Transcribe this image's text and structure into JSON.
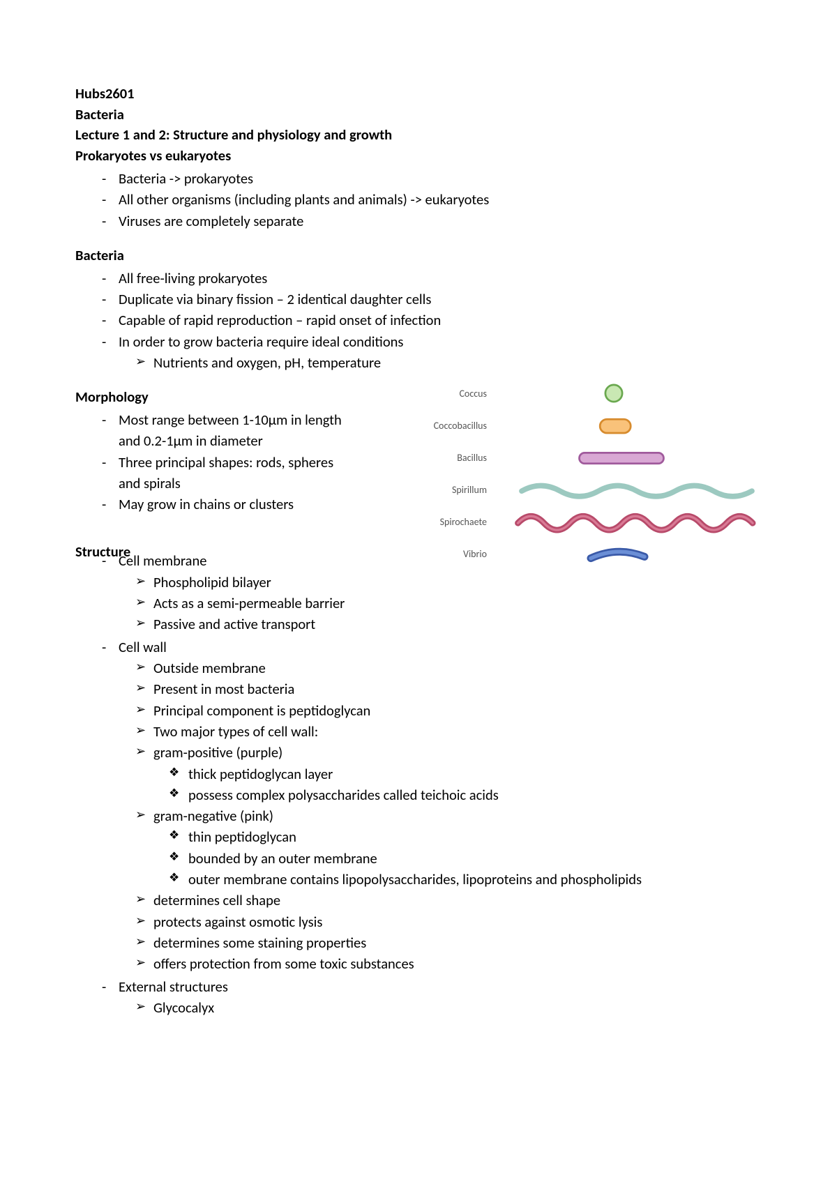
{
  "header": {
    "course": "Hubs2601",
    "topic": "Bacteria",
    "lecture": "Lecture 1 and 2: Structure and physiology and growth",
    "section1": "Prokaryotes vs eukaryotes"
  },
  "prok_vs_euk": [
    "Bacteria -> prokaryotes",
    "All other organisms (including plants and animals) -> eukaryotes",
    "Viruses are completely separate"
  ],
  "bacteria_heading": "Bacteria",
  "bacteria_points": [
    "All free-living prokaryotes",
    "Duplicate via binary fission – 2 identical daughter cells",
    "Capable of rapid reproduction – rapid onset of infection",
    "In order to grow bacteria require ideal conditions"
  ],
  "bacteria_sub": [
    "Nutrients and oxygen, pH, temperature"
  ],
  "morphology_heading": "Morphology",
  "morphology_points": [
    "Most range between 1-10μm in length and 0.2-1μm in diameter",
    "Three principal shapes: rods, spheres and spirals",
    "May grow in chains or clusters"
  ],
  "shapes": [
    {
      "label": "Coccus",
      "type": "coccus",
      "fill": "#c9e8b3",
      "stroke": "#6aa84f"
    },
    {
      "label": "Coccobacillus",
      "type": "coccobacillus",
      "fill": "#f9c27a",
      "stroke": "#d78b2d"
    },
    {
      "label": "Bacillus",
      "type": "bacillus",
      "fill": "#d9a8d4",
      "stroke": "#a05a9c"
    },
    {
      "label": "Spirillum",
      "type": "spirillum",
      "fill": "none",
      "stroke": "#9cc9c0"
    },
    {
      "label": "Spirochaete",
      "type": "spirochaete",
      "fill": "none",
      "stroke": "#b84a6a"
    },
    {
      "label": "Vibrio",
      "type": "vibrio",
      "fill": "#6b8fd6",
      "stroke": "#3a5aa8"
    }
  ],
  "structure_heading": "Structure",
  "cell_membrane": {
    "title": "Cell membrane",
    "points": [
      "Phospholipid bilayer",
      "Acts as a semi-permeable barrier",
      "Passive and active transport"
    ]
  },
  "cell_wall": {
    "title": "Cell wall",
    "points_top": [
      "Outside membrane",
      "Present in most bacteria",
      "Principal component is peptidoglycan",
      "Two major types of cell wall:",
      "gram-positive (purple)"
    ],
    "gram_pos": [
      "thick peptidoglycan layer",
      "possess complex polysaccharides called teichoic acids"
    ],
    "gram_neg_heading": "gram-negative (pink)",
    "gram_neg": [
      "thin peptidoglycan",
      "bounded by an outer membrane",
      "outer membrane contains lipopolysaccharides, lipoproteins and phospholipids"
    ],
    "points_bottom": [
      "determines cell shape",
      "protects against osmotic lysis",
      "determines some staining properties",
      "offers protection from some toxic substances"
    ]
  },
  "external": {
    "title": "External structures",
    "points": [
      "Glycocalyx"
    ]
  }
}
